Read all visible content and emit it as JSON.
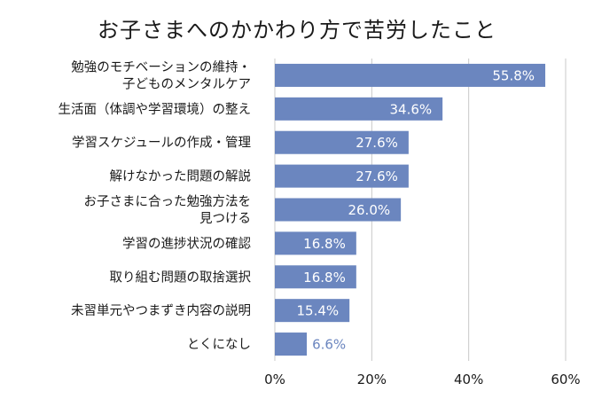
{
  "chart_data": {
    "type": "bar",
    "orientation": "horizontal",
    "title": "お子さまへのかかわり方で苦労したこと",
    "xlabel": "",
    "ylabel": "",
    "categories": [
      [
        "勉強のモチベーションの維持・",
        "子どものメンタルケア"
      ],
      [
        "生活面（体調や学習環境）の整え"
      ],
      [
        "学習スケジュールの作成・管理"
      ],
      [
        "解けなかった問題の解説"
      ],
      [
        "お子さまに合った勉強方法を",
        "見つける"
      ],
      [
        "学習の進捗状況の確認"
      ],
      [
        "取り組む問題の取捨選択"
      ],
      [
        "未習単元やつまずき内容の説明"
      ],
      [
        "とくになし"
      ]
    ],
    "values": [
      55.8,
      34.6,
      27.6,
      27.6,
      26.0,
      16.8,
      16.8,
      15.4,
      6.6
    ],
    "value_labels": [
      "55.8%",
      "34.6%",
      "27.6%",
      "27.6%",
      "26.0%",
      "16.8%",
      "16.8%",
      "15.4%",
      "6.6%"
    ],
    "xlim": [
      0,
      60
    ],
    "xticks": [
      0,
      20,
      40,
      60
    ],
    "xtick_labels": [
      "0%",
      "20%",
      "40%",
      "60%"
    ],
    "grid": true,
    "colors": {
      "bar": "#6b86bf",
      "label_inside": "#ffffff",
      "label_outside": "#6b86bf",
      "grid": "#c8c8c8"
    }
  }
}
